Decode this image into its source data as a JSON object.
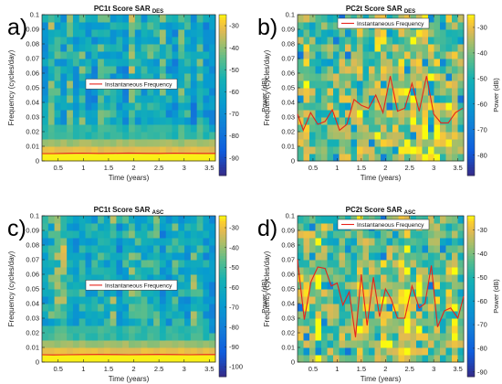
{
  "chart_data": [
    {
      "type": "heatmap",
      "panel_letter": "a)",
      "title": "PC1t Score SAR",
      "title_sub": "DES",
      "xlabel": "Time (years)",
      "ylabel": "Frequency (cycles/day)",
      "xlim": [
        0.18,
        3.62
      ],
      "ylim": [
        0,
        0.1
      ],
      "xticks": [
        "0.5",
        "1",
        "1.5",
        "2",
        "2.5",
        "3",
        "3.5"
      ],
      "yticks": [
        "0",
        "0.01",
        "0.02",
        "0.03",
        "0.04",
        "0.05",
        "0.06",
        "0.07",
        "0.08",
        "0.09",
        "0.1"
      ],
      "colorbar": {
        "label": "Power (dB)",
        "range": [
          -98,
          -25
        ],
        "ticks": [
          "-30",
          "-40",
          "-50",
          "-60",
          "-70",
          "-80",
          "-90"
        ]
      },
      "legend": {
        "label": "Instantaneous Frequency",
        "position": "center"
      },
      "series": [
        {
          "name": "Instantaneous Frequency",
          "x": [
            0.18,
            0.4,
            0.7,
            1.0,
            1.3,
            1.6,
            1.9,
            2.2,
            2.5,
            2.8,
            3.1,
            3.4,
            3.62
          ],
          "y": [
            0.005,
            0.005,
            0.0052,
            0.0053,
            0.0051,
            0.0052,
            0.0054,
            0.0052,
            0.0051,
            0.0053,
            0.0052,
            0.0051,
            0.0051
          ]
        }
      ]
    },
    {
      "type": "heatmap",
      "panel_letter": "b)",
      "title": "PC2t Score SAR",
      "title_sub": "DES",
      "xlabel": "Time (years)",
      "ylabel": "Frequency (cycles/day)",
      "xlim": [
        0.18,
        3.62
      ],
      "ylim": [
        0,
        0.1
      ],
      "xticks": [
        "0.5",
        "1",
        "1.5",
        "2",
        "2.5",
        "3",
        "3.5"
      ],
      "yticks": [
        "0",
        "0.01",
        "0.02",
        "0.03",
        "0.04",
        "0.05",
        "0.06",
        "0.07",
        "0.08",
        "0.09",
        "0.1"
      ],
      "colorbar": {
        "label": "Power (dB)",
        "range": [
          -88,
          -25
        ],
        "ticks": [
          "-30",
          "-40",
          "-50",
          "-60",
          "-70",
          "-80"
        ]
      },
      "legend": {
        "label": "Instantaneous Frequency",
        "position": "top-center"
      },
      "series": [
        {
          "name": "Instantaneous Frequency",
          "x": [
            0.18,
            0.3,
            0.45,
            0.6,
            0.75,
            0.9,
            1.05,
            1.2,
            1.35,
            1.5,
            1.65,
            1.8,
            1.95,
            2.1,
            2.25,
            2.4,
            2.55,
            2.7,
            2.85,
            3.0,
            3.15,
            3.3,
            3.45,
            3.6
          ],
          "y": [
            0.032,
            0.021,
            0.033,
            0.025,
            0.027,
            0.035,
            0.021,
            0.025,
            0.042,
            0.038,
            0.036,
            0.045,
            0.033,
            0.058,
            0.034,
            0.036,
            0.053,
            0.034,
            0.058,
            0.032,
            0.026,
            0.026,
            0.033,
            0.036
          ]
        }
      ]
    },
    {
      "type": "heatmap",
      "panel_letter": "c)",
      "title": "PC1t Score SAR",
      "title_sub": "ASC",
      "xlabel": "Time (years)",
      "ylabel": "Frequency (cycles/day)",
      "xlim": [
        0.18,
        3.62
      ],
      "ylim": [
        0,
        0.1
      ],
      "xticks": [
        "0.5",
        "1",
        "1.5",
        "2",
        "2.5",
        "3",
        "3.5"
      ],
      "yticks": [
        "0",
        "0.01",
        "0.02",
        "0.03",
        "0.04",
        "0.05",
        "0.06",
        "0.07",
        "0.08",
        "0.09",
        "0.1"
      ],
      "colorbar": {
        "label": "Power (dB)",
        "range": [
          -105,
          -24
        ],
        "ticks": [
          "-30",
          "-40",
          "-50",
          "-60",
          "-70",
          "-80",
          "-90",
          "-100"
        ]
      },
      "legend": {
        "label": "Instantaneous Frequency",
        "position": "center"
      },
      "series": [
        {
          "name": "Instantaneous Frequency",
          "x": [
            0.18,
            0.4,
            0.7,
            1.0,
            1.3,
            1.6,
            1.9,
            2.2,
            2.5,
            2.8,
            3.1,
            3.4,
            3.62
          ],
          "y": [
            0.005,
            0.0049,
            0.005,
            0.0051,
            0.0052,
            0.0051,
            0.005,
            0.0051,
            0.0052,
            0.0051,
            0.005,
            0.0051,
            0.0051
          ]
        }
      ]
    },
    {
      "type": "heatmap",
      "panel_letter": "d)",
      "title": "PC2t Score SAR",
      "title_sub": "ASC",
      "xlabel": "Time (years)",
      "ylabel": "Frequency (cycles/day)",
      "xlim": [
        0.18,
        3.62
      ],
      "ylim": [
        0,
        0.1
      ],
      "xticks": [
        "0.5",
        "1",
        "1.5",
        "2",
        "2.5",
        "3",
        "3.5"
      ],
      "yticks": [
        "0",
        "0.01",
        "0.02",
        "0.03",
        "0.04",
        "0.05",
        "0.06",
        "0.07",
        "0.08",
        "0.09",
        "0.1"
      ],
      "colorbar": {
        "label": "Power (dB)",
        "range": [
          -92,
          -24
        ],
        "ticks": [
          "-30",
          "-40",
          "-50",
          "-60",
          "-70",
          "-80",
          "-90"
        ]
      },
      "legend": {
        "label": "Instantaneous Frequency",
        "position": "top-center"
      },
      "series": [
        {
          "name": "Instantaneous Frequency",
          "x": [
            0.18,
            0.32,
            0.46,
            0.6,
            0.75,
            0.88,
            1.0,
            1.12,
            1.25,
            1.38,
            1.5,
            1.62,
            1.75,
            1.88,
            2.0,
            2.12,
            2.25,
            2.4,
            2.55,
            2.7,
            2.82,
            2.95,
            3.08,
            3.22,
            3.35,
            3.5,
            3.62
          ],
          "y": [
            0.07,
            0.029,
            0.055,
            0.065,
            0.064,
            0.052,
            0.054,
            0.039,
            0.048,
            0.017,
            0.06,
            0.025,
            0.058,
            0.031,
            0.05,
            0.043,
            0.03,
            0.03,
            0.052,
            0.037,
            0.04,
            0.066,
            0.024,
            0.035,
            0.037,
            0.03,
            0.045
          ]
        }
      ]
    }
  ]
}
